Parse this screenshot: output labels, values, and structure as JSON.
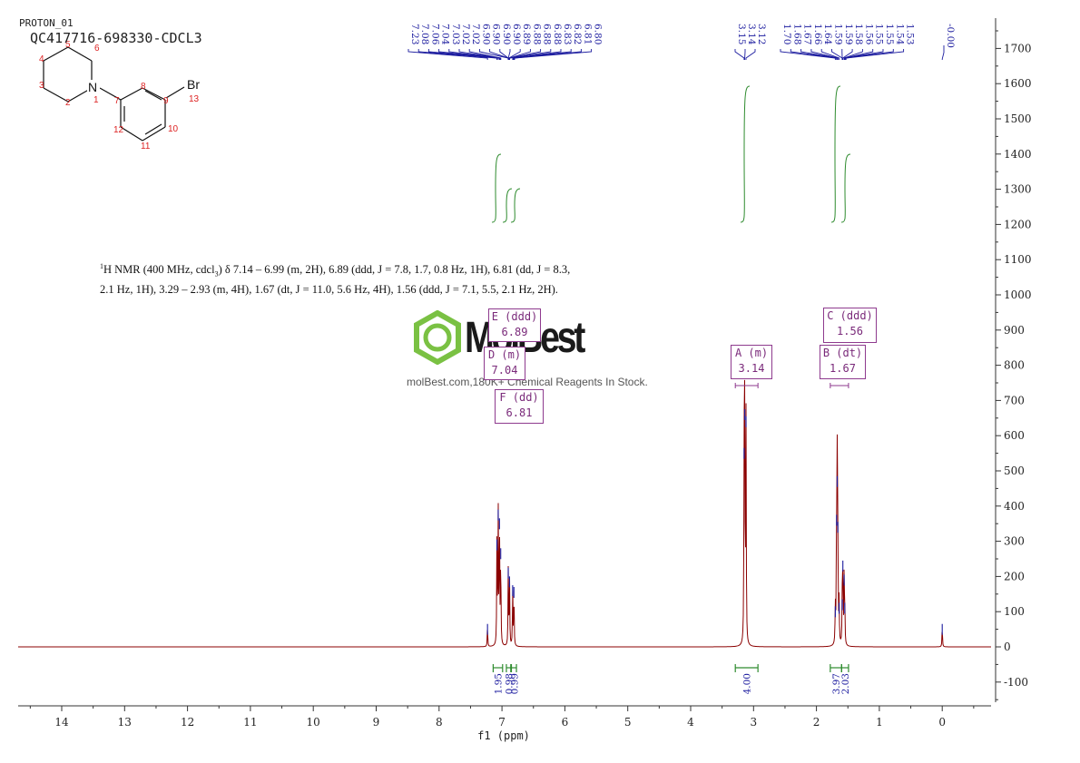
{
  "header": {
    "title": "PROTON_01",
    "sample": "QC417716-698330-CDCL3"
  },
  "structure": {
    "atom_n": "N",
    "atom_br": "Br",
    "numbers": [
      "1",
      "2",
      "3",
      "4",
      "5",
      "6",
      "7",
      "8",
      "9",
      "10",
      "11",
      "12",
      "13"
    ]
  },
  "nmr_description": {
    "prefix": "1",
    "nucleus": "H NMR (400 MHz, cdcl",
    "solvent_sub": "3",
    "line1_rest": ") δ 7.14 – 6.99 (m, 2H), 6.89 (ddd, J = 7.8, 1.7, 0.8 Hz, 1H), 6.81 (dd, J = 8.3,",
    "line2": "2.1 Hz, 1H), 3.29 – 2.93 (m, 4H), 1.67 (dt, J = 11.0, 5.6 Hz, 4H), 1.56 (ddd, J = 7.1, 5.5, 2.1 Hz, 2H)."
  },
  "watermark": {
    "name": "MolBest",
    "url": "molBest.com,180K+ Chemical Reagents In Stock."
  },
  "colors": {
    "spectrum": "#8b0000",
    "integral": "#2e8b2e",
    "peak_label": "#1a1a9e",
    "multiplet_box": "#8e3a8e",
    "axis": "#333333"
  },
  "chart_data": {
    "type": "line",
    "title": "",
    "xlabel": "f1 (ppm)",
    "ylabel": "",
    "xlim": [
      14.7,
      -0.8
    ],
    "ylim": [
      -170,
      1790
    ],
    "x_ticks": [
      14,
      13,
      12,
      11,
      10,
      9,
      8,
      7,
      6,
      5,
      4,
      3,
      2,
      1,
      0
    ],
    "y_ticks": [
      -100,
      0,
      100,
      200,
      300,
      400,
      500,
      600,
      700,
      800,
      900,
      1000,
      1100,
      1200,
      1300,
      1400,
      1500,
      1600,
      1700
    ],
    "peaks": [
      {
        "ppm": 7.23,
        "height": 60
      },
      {
        "ppm": 7.08,
        "height": 300
      },
      {
        "ppm": 7.06,
        "height": 385
      },
      {
        "ppm": 7.04,
        "height": 360
      },
      {
        "ppm": 7.02,
        "height": 275
      },
      {
        "ppm": 6.9,
        "height": 220
      },
      {
        "ppm": 6.88,
        "height": 195
      },
      {
        "ppm": 6.83,
        "height": 170
      },
      {
        "ppm": 6.81,
        "height": 165
      },
      {
        "ppm": 3.15,
        "height": 560
      },
      {
        "ppm": 3.14,
        "height": 670
      },
      {
        "ppm": 3.12,
        "height": 650
      },
      {
        "ppm": 1.7,
        "height": 110
      },
      {
        "ppm": 1.68,
        "height": 370
      },
      {
        "ppm": 1.67,
        "height": 480
      },
      {
        "ppm": 1.66,
        "height": 350
      },
      {
        "ppm": 1.64,
        "height": 120
      },
      {
        "ppm": 1.59,
        "height": 130
      },
      {
        "ppm": 1.58,
        "height": 240
      },
      {
        "ppm": 1.56,
        "height": 200
      },
      {
        "ppm": 1.55,
        "height": 120
      },
      {
        "ppm": 0.0,
        "height": 60
      }
    ],
    "peak_labels": [
      "7.23",
      "7.08",
      "7.06",
      "7.04",
      "7.03",
      "7.02",
      "7.02",
      "6.90",
      "6.90",
      "6.90",
      "6.90",
      "6.89",
      "6.88",
      "6.88",
      "6.88",
      "6.83",
      "6.82",
      "6.81",
      "6.80",
      "3.15",
      "3.14",
      "3.12",
      "1.70",
      "1.68",
      "1.67",
      "1.66",
      "1.64",
      "1.59",
      "1.59",
      "1.58",
      "1.56",
      "1.55",
      "1.55",
      "1.54",
      "1.53",
      "-0.00"
    ],
    "peak_label_groups": [
      {
        "ppm_from": 7.23,
        "ppm_to": 6.8,
        "count": 19
      },
      {
        "ppm_from": 3.15,
        "ppm_to": 3.12,
        "count": 3
      },
      {
        "ppm_from": 1.7,
        "ppm_to": 1.53,
        "count": 13
      },
      {
        "ppm_from": 0.0,
        "ppm_to": 0.0,
        "count": 1
      }
    ],
    "integrals": [
      {
        "from": 7.14,
        "to": 6.99,
        "value": "1.95"
      },
      {
        "from": 6.93,
        "to": 6.86,
        "value": "0.98"
      },
      {
        "from": 6.85,
        "to": 6.77,
        "value": "0.99"
      },
      {
        "from": 3.29,
        "to": 2.93,
        "value": "4.00"
      },
      {
        "from": 1.78,
        "to": 1.6,
        "value": "3.97"
      },
      {
        "from": 1.6,
        "to": 1.49,
        "value": "2.03"
      }
    ],
    "multiplets": [
      {
        "label": "A (m)",
        "shift": "3.14"
      },
      {
        "label": "B (dt)",
        "shift": "1.67"
      },
      {
        "label": "C (ddd)",
        "shift": "1.56"
      },
      {
        "label": "D (m)",
        "shift": "7.04"
      },
      {
        "label": "E (ddd)",
        "shift": "6.89"
      },
      {
        "label": "F (dd)",
        "shift": "6.81"
      }
    ]
  }
}
